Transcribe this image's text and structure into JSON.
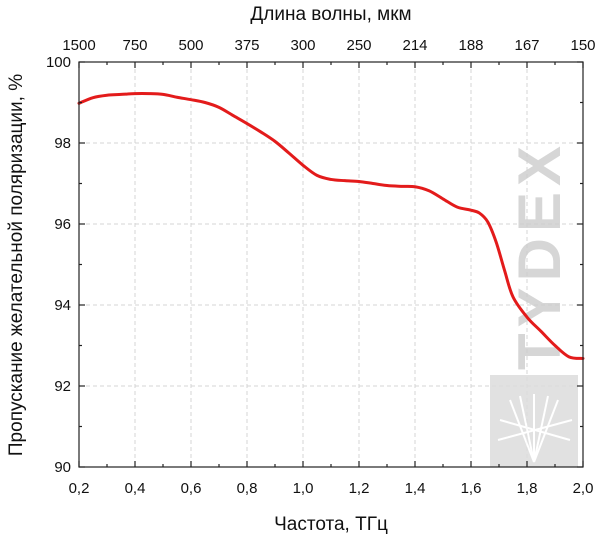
{
  "chart_data": {
    "type": "line",
    "title": "",
    "xlabel": "Частота, ТГц",
    "ylabel": "Пропускание желательной поляризации, %",
    "x2label": "Длина волны, мкм",
    "xlim": [
      0.2,
      2.0
    ],
    "ylim": [
      90,
      100
    ],
    "x_ticks": [
      0.2,
      0.4,
      0.6,
      0.8,
      1.0,
      1.2,
      1.4,
      1.6,
      1.8,
      2.0
    ],
    "x_tick_labels": [
      "0,2",
      "0,4",
      "0,6",
      "0,8",
      "1,0",
      "1,2",
      "1,4",
      "1,6",
      "1,8",
      "2,0"
    ],
    "y_ticks": [
      90,
      92,
      94,
      96,
      98,
      100
    ],
    "y_tick_labels": [
      "90",
      "92",
      "94",
      "96",
      "98",
      "100"
    ],
    "x2_ticks": [
      0.2,
      0.4,
      0.6,
      0.8,
      1.0,
      1.2,
      1.4,
      1.6,
      1.8,
      2.0
    ],
    "x2_tick_labels": [
      "1500",
      "750",
      "500",
      "375",
      "300",
      "250",
      "214",
      "188",
      "167",
      "150"
    ],
    "grid": true,
    "series": [
      {
        "color": "#e31b1b",
        "x": [
          0.2,
          0.25,
          0.3,
          0.35,
          0.4,
          0.45,
          0.5,
          0.55,
          0.6,
          0.65,
          0.7,
          0.75,
          0.8,
          0.85,
          0.9,
          0.95,
          1.0,
          1.05,
          1.1,
          1.15,
          1.2,
          1.25,
          1.3,
          1.35,
          1.4,
          1.45,
          1.5,
          1.55,
          1.6,
          1.63,
          1.66,
          1.69,
          1.72,
          1.75,
          1.8,
          1.85,
          1.9,
          1.95,
          2.0
        ],
        "y": [
          98.98,
          99.12,
          99.18,
          99.2,
          99.22,
          99.22,
          99.2,
          99.13,
          99.07,
          99.0,
          98.88,
          98.68,
          98.48,
          98.27,
          98.04,
          97.75,
          97.45,
          97.2,
          97.1,
          97.07,
          97.05,
          97.0,
          96.95,
          96.93,
          96.92,
          96.82,
          96.62,
          96.42,
          96.34,
          96.27,
          96.05,
          95.55,
          94.85,
          94.2,
          93.7,
          93.35,
          93.0,
          92.72,
          92.68
        ]
      }
    ],
    "watermark": "TYDEX"
  }
}
